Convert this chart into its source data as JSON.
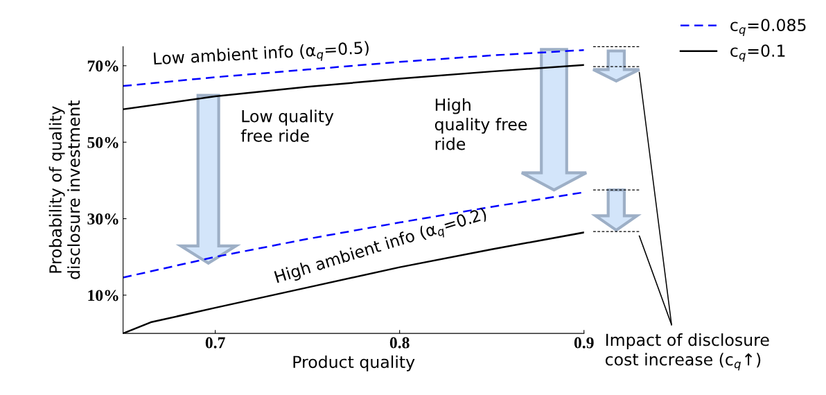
{
  "chart_data": {
    "type": "line",
    "xlabel": "Product quality",
    "ylabel": "Probability of quality\ndisclosure investment",
    "xlim": [
      0.65,
      0.9
    ],
    "xticks": [
      0.7,
      0.8,
      0.9
    ],
    "ylim": [
      0,
      75
    ],
    "yticks": [
      {
        "value": 10,
        "label": "10%"
      },
      {
        "value": 30,
        "label": "30%"
      },
      {
        "value": 50,
        "label": "50%"
      },
      {
        "value": 70,
        "label": "70%"
      }
    ],
    "grid": false,
    "legend": "top right",
    "marker": "none",
    "series": [
      {
        "name": "c$_{q}$=0.085",
        "color": "#0000ff",
        "line_style": "dashed",
        "x": [
          0.65,
          0.7,
          0.75,
          0.8,
          0.85,
          0.9
        ],
        "values": [
          64.7,
          67.0,
          69.0,
          71.0,
          72.7,
          74.1
        ]
      },
      {
        "name": "c$_{q}$=0.1",
        "color": "#000000",
        "line_style": "solid",
        "x": [
          0.65,
          0.7,
          0.75,
          0.8,
          0.85,
          0.9
        ],
        "values": [
          58.6,
          62.0,
          64.5,
          66.6,
          68.5,
          70.2
        ]
      },
      {
        "color": "#0000ff",
        "line_style": "dashed",
        "x": [
          0.65,
          0.7,
          0.75,
          0.8,
          0.85,
          0.9
        ],
        "values": [
          14.6,
          20.0,
          24.7,
          29.0,
          33.1,
          36.9
        ]
      },
      {
        "color": "#000000",
        "line_style": "solid",
        "x": [
          0.65,
          0.665,
          0.7,
          0.75,
          0.8,
          0.85,
          0.9
        ],
        "values": [
          0,
          2.9,
          6.7,
          12.0,
          17.3,
          22.0,
          26.4
        ]
      }
    ],
    "annotations": [
      "Low ambient info (α$_{q}$=0.5)",
      "High ambient info (α$_{q}$=0.2)",
      "Low quality\nfree ride",
      "High\nquality free\nride",
      "Impact of disclosure\ncost increase (c$_{q}$↑)"
    ]
  }
}
